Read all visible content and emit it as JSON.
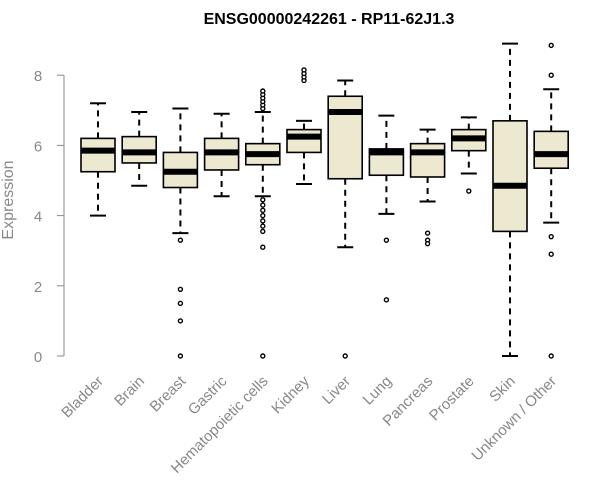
{
  "chart_data": {
    "type": "boxplot",
    "title": "ENSG00000242261 - RP11-62J1.3",
    "xlabel": "",
    "ylabel": "Expression",
    "ylim": [
      0,
      9
    ],
    "yticks": [
      0,
      2,
      4,
      6,
      8
    ],
    "box_fill": "#ede8d0",
    "categories": [
      "Bladder",
      "Brain",
      "Breast",
      "Gastric",
      "Hematopoietic cells",
      "Kidney",
      "Liver",
      "Lung",
      "Pancreas",
      "Prostate",
      "Skin",
      "Unknown / Other"
    ],
    "boxes": [
      {
        "name": "Bladder",
        "whisker_low": 4.0,
        "q1": 5.25,
        "median": 5.85,
        "q3": 6.2,
        "whisker_high": 7.2,
        "outliers": []
      },
      {
        "name": "Brain",
        "whisker_low": 4.85,
        "q1": 5.5,
        "median": 5.8,
        "q3": 6.25,
        "whisker_high": 6.95,
        "outliers": []
      },
      {
        "name": "Breast",
        "whisker_low": 3.5,
        "q1": 4.8,
        "median": 5.25,
        "q3": 5.8,
        "whisker_high": 7.05,
        "outliers": [
          3.3,
          1.9,
          1.5,
          1.0,
          0.0
        ]
      },
      {
        "name": "Gastric",
        "whisker_low": 4.55,
        "q1": 5.3,
        "median": 5.8,
        "q3": 6.2,
        "whisker_high": 6.9,
        "outliers": []
      },
      {
        "name": "Hematopoietic cells",
        "whisker_low": 4.55,
        "q1": 5.45,
        "median": 5.75,
        "q3": 6.05,
        "whisker_high": 6.95,
        "outliers": [
          7.05,
          7.15,
          7.25,
          7.35,
          7.45,
          7.55,
          4.45,
          4.3,
          4.15,
          4.0,
          3.85,
          3.7,
          3.55,
          3.1,
          0.0
        ]
      },
      {
        "name": "Kidney",
        "whisker_low": 4.9,
        "q1": 5.8,
        "median": 6.25,
        "q3": 6.45,
        "whisker_high": 6.7,
        "outliers": [
          7.85,
          7.95,
          8.05,
          8.15
        ]
      },
      {
        "name": "Liver",
        "whisker_low": 3.1,
        "q1": 5.05,
        "median": 6.95,
        "q3": 7.4,
        "whisker_high": 7.85,
        "outliers": [
          0.0
        ]
      },
      {
        "name": "Lung",
        "whisker_low": 4.05,
        "q1": 5.15,
        "median": 5.8,
        "q3": 5.9,
        "whisker_high": 6.85,
        "outliers": [
          3.3,
          1.6
        ]
      },
      {
        "name": "Pancreas",
        "whisker_low": 4.4,
        "q1": 5.1,
        "median": 5.8,
        "q3": 6.05,
        "whisker_high": 6.45,
        "outliers": [
          3.5,
          3.3,
          3.2
        ]
      },
      {
        "name": "Prostate",
        "whisker_low": 5.2,
        "q1": 5.85,
        "median": 6.2,
        "q3": 6.45,
        "whisker_high": 6.8,
        "outliers": [
          4.7
        ]
      },
      {
        "name": "Skin",
        "whisker_low": 0.0,
        "q1": 3.55,
        "median": 4.85,
        "q3": 6.7,
        "whisker_high": 8.9,
        "outliers": []
      },
      {
        "name": "Unknown / Other",
        "whisker_low": 3.8,
        "q1": 5.35,
        "median": 5.75,
        "q3": 6.4,
        "whisker_high": 7.6,
        "outliers": [
          8.0,
          8.85,
          3.4,
          2.9,
          0.0
        ]
      }
    ]
  }
}
